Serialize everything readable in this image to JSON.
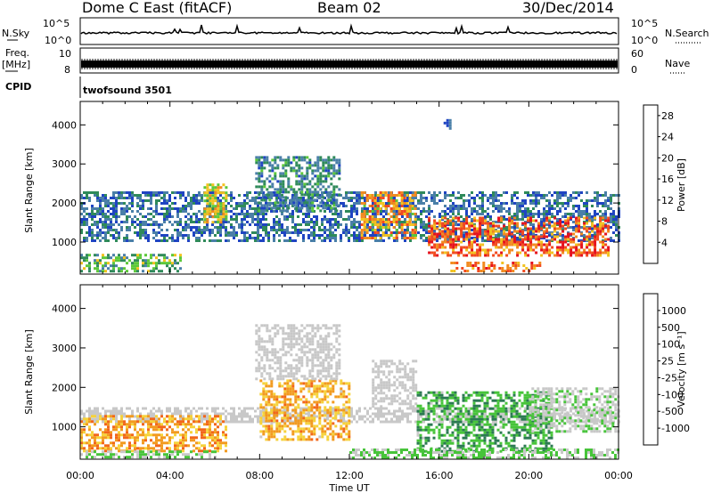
{
  "header": {
    "station": "Dome C East (fitACF)",
    "beam": "Beam 02",
    "date": "30/Dec/2014"
  },
  "panel_labels": {
    "nsky": "N.Sky",
    "nsky_top": "10^5",
    "nsky_bottom": "10^0",
    "nsearch": "N.Search",
    "nsearch_top": "10^5",
    "nsearch_bottom": "10^0",
    "freq": "Freq.",
    "freq_unit": "[MHz]",
    "freq_top": "10",
    "freq_bottom": "8",
    "nave": "Nave",
    "nave_top": "60",
    "nave_bottom": "0",
    "cpid": "CPID",
    "cpid_value": "twofsound 3501"
  },
  "colors": {
    "power": [
      "#0a22e6",
      "#1f44c2",
      "#4a7fa8",
      "#2f8a5a",
      "#5cc83a",
      "#f2c21f",
      "#f28a1f",
      "#f24a1f",
      "#e6111c"
    ],
    "velocity": [
      "#1a30c8",
      "#2a6aa5",
      "#2b7a52",
      "#47c43a",
      "#c8c8c8",
      "#f6d23a",
      "#f29a1f",
      "#f2661a",
      "#e6111c"
    ]
  },
  "chart_data": [
    {
      "type": "heatmap",
      "title": "Power",
      "ylabel": "Slant Range [km]",
      "xlabel": "",
      "x_ticks": [
        "00:00",
        "04:00",
        "08:00",
        "12:00",
        "16:00",
        "20:00",
        "00:00"
      ],
      "x_range_hours": [
        0,
        24
      ],
      "y_ticks": [
        1000,
        2000,
        3000,
        4000
      ],
      "y_range_km": [
        180,
        4600
      ],
      "colorbar": {
        "label": "Power [dB]",
        "ticks": [
          "4",
          "8",
          "12",
          "16",
          "20",
          "24",
          "28"
        ],
        "range": [
          0,
          30
        ]
      },
      "echo_regions": [
        {
          "t": [
            0.0,
            24.0
          ],
          "r": [
            1050,
            2300
          ],
          "v": [
            4,
            12
          ]
        },
        {
          "t": [
            0.0,
            4.5
          ],
          "r": [
            250,
            700
          ],
          "v": [
            8,
            18
          ]
        },
        {
          "t": [
            5.5,
            6.5
          ],
          "r": [
            1500,
            2500
          ],
          "v": [
            14,
            22
          ]
        },
        {
          "t": [
            7.8,
            11.5
          ],
          "r": [
            1800,
            3200
          ],
          "v": [
            6,
            14
          ]
        },
        {
          "t": [
            12.5,
            15.0
          ],
          "r": [
            1100,
            2300
          ],
          "v": [
            16,
            26
          ]
        },
        {
          "t": [
            15.5,
            23.5
          ],
          "r": [
            650,
            1650
          ],
          "v": [
            18,
            30
          ]
        },
        {
          "t": [
            16.5,
            20.5
          ],
          "r": [
            250,
            500
          ],
          "v": [
            18,
            28
          ]
        },
        {
          "t": [
            16.2,
            16.5
          ],
          "r": [
            3900,
            4150
          ],
          "v": [
            4,
            8
          ]
        }
      ]
    },
    {
      "type": "heatmap",
      "title": "Velocity",
      "ylabel": "Slant Range [km]",
      "xlabel": "Time UT",
      "x_ticks": [
        "00:00",
        "04:00",
        "08:00",
        "12:00",
        "16:00",
        "20:00",
        "00:00"
      ],
      "x_range_hours": [
        0,
        24
      ],
      "y_ticks": [
        1000,
        2000,
        3000,
        4000
      ],
      "y_range_km": [
        180,
        4600
      ],
      "colorbar": {
        "label": "Velocity [m s⁻¹]",
        "ticks": [
          "1000",
          "500",
          "100",
          "25",
          "-25",
          "-100",
          "-500",
          "-1000"
        ],
        "range": [
          -1000,
          1000
        ]
      },
      "echo_regions": [
        {
          "t": [
            0.0,
            24.0
          ],
          "r": [
            1100,
            1500
          ],
          "v": [
            -25,
            25
          ]
        },
        {
          "t": [
            0.0,
            6.5
          ],
          "r": [
            400,
            1300
          ],
          "v": [
            -700,
            -150
          ]
        },
        {
          "t": [
            0.0,
            6.0
          ],
          "r": [
            200,
            400
          ],
          "v": [
            50,
            200
          ]
        },
        {
          "t": [
            8.0,
            12.0
          ],
          "r": [
            700,
            2200
          ],
          "v": [
            -600,
            -100
          ]
        },
        {
          "t": [
            7.8,
            11.5
          ],
          "r": [
            2200,
            3600
          ],
          "v": [
            -25,
            25
          ]
        },
        {
          "t": [
            13.0,
            15.0
          ],
          "r": [
            1500,
            2700
          ],
          "v": [
            -25,
            100
          ]
        },
        {
          "t": [
            15.0,
            21.0
          ],
          "r": [
            400,
            1900
          ],
          "v": [
            100,
            500
          ]
        },
        {
          "t": [
            20.0,
            24.0
          ],
          "r": [
            900,
            2000
          ],
          "v": [
            25,
            150
          ]
        },
        {
          "t": [
            12.0,
            24.0
          ],
          "r": [
            200,
            450
          ],
          "v": [
            50,
            200
          ]
        }
      ]
    }
  ]
}
